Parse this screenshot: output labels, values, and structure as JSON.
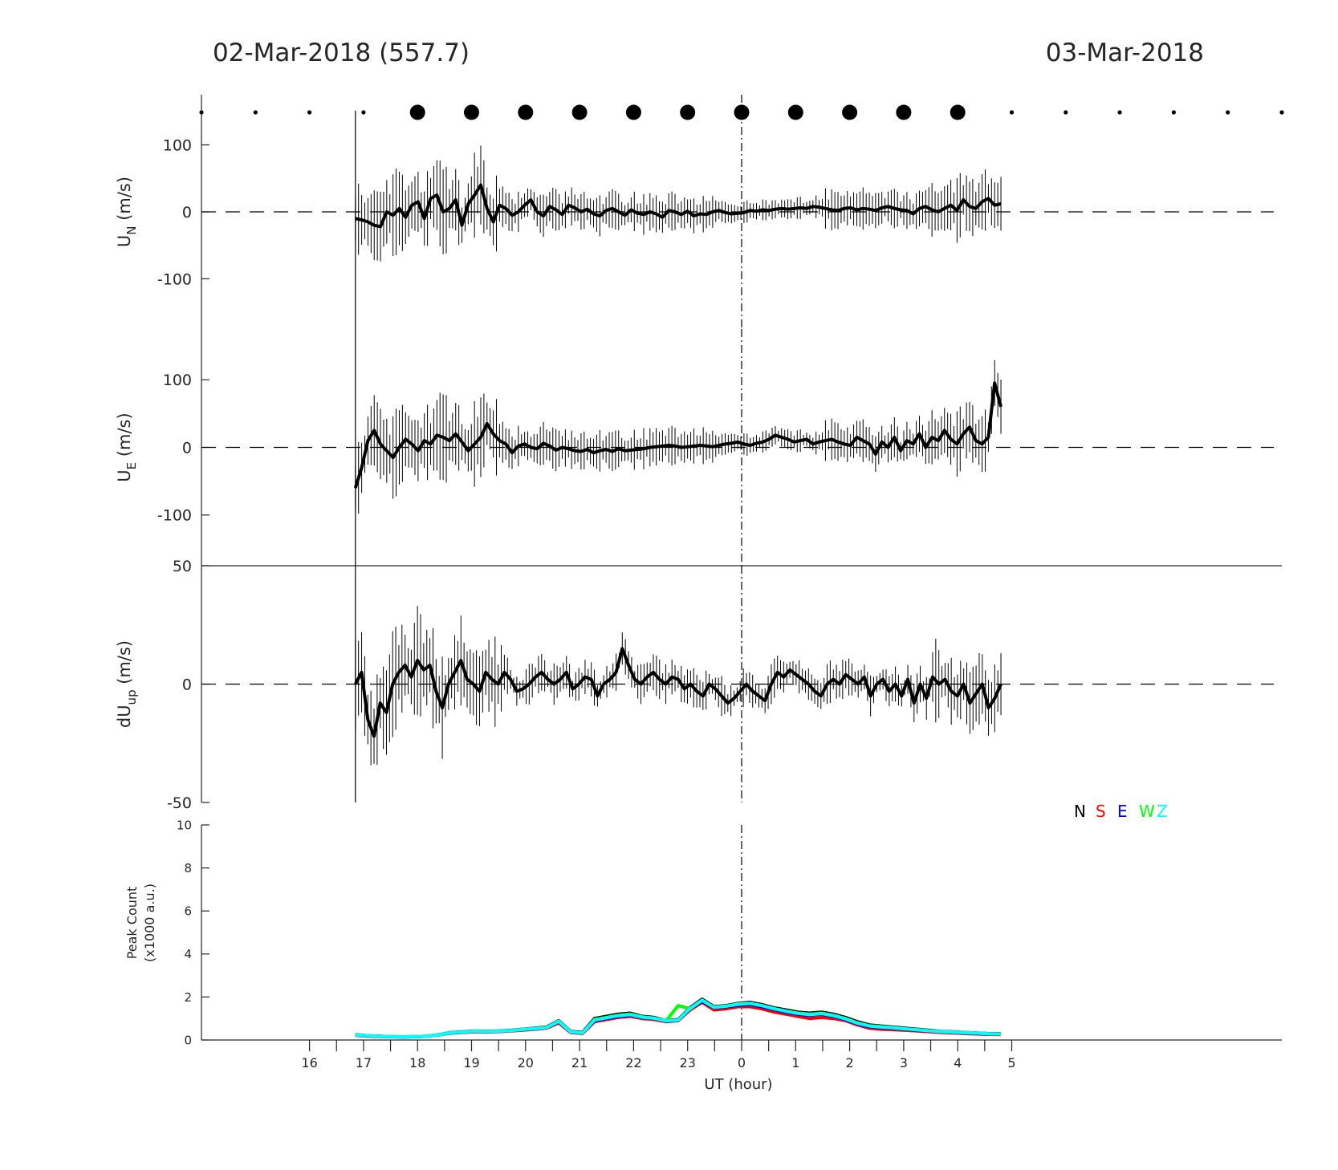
{
  "header": {
    "left_date": "02-Mar-2018 (557.7)",
    "right_date": "03-Mar-2018"
  },
  "colors": {
    "axis": "#262626",
    "data": "#000000",
    "N": "#000000",
    "S": "#ff0000",
    "E": "#0000ff",
    "W": "#00ff00",
    "Z": "#00ffff"
  },
  "x_axis": {
    "label": "UT (hour)",
    "range_hours": [
      14.0,
      34.0
    ],
    "tick_labels": [
      "16",
      "17",
      "18",
      "19",
      "20",
      "21",
      "22",
      "23",
      "0",
      "1",
      "2",
      "3",
      "4",
      "5"
    ],
    "tick_positions_hours": [
      16,
      17,
      18,
      19,
      20,
      21,
      22,
      23,
      24,
      25,
      26,
      27,
      28,
      29
    ],
    "minor_tick_step_hours": 0.5,
    "midnight_marker_hours": 24
  },
  "chart_data": [
    {
      "type": "scatter",
      "role": "sky-condition-dots",
      "x_hours": [
        14.0,
        15.0,
        16.0,
        17.0,
        18.0,
        19.0,
        20.0,
        21.0,
        22.0,
        23.0,
        24.0,
        25.0,
        26.0,
        27.0,
        28.0,
        29.0,
        30.0,
        31.0,
        32.0,
        33.0,
        34.0
      ],
      "size": [
        "small",
        "small",
        "small",
        "small",
        "large",
        "large",
        "large",
        "large",
        "large",
        "large",
        "large",
        "large",
        "large",
        "large",
        "large",
        "small",
        "small",
        "small",
        "small",
        "small",
        "small"
      ]
    },
    {
      "type": "line",
      "id": "un",
      "ylabel": "U",
      "ylabel_sub": "N",
      "ylabel_unit": " (m/s)",
      "ylim": [
        -175,
        175
      ],
      "yticks": [
        -100,
        0,
        100
      ],
      "ytick_labels": [
        "-100",
        "0",
        "100"
      ],
      "zero_line": "dashed",
      "x_start": 16.85,
      "x_end": 28.8,
      "error_bars": true,
      "values": [
        -10,
        -12,
        -15,
        -20,
        -22,
        0,
        -5,
        5,
        -8,
        10,
        15,
        -10,
        20,
        25,
        0,
        5,
        18,
        -20,
        12,
        25,
        40,
        5,
        -15,
        10,
        5,
        -5,
        0,
        10,
        18,
        0,
        -6,
        8,
        3,
        -4,
        10,
        6,
        0,
        4,
        -3,
        -6,
        2,
        5,
        0,
        -5,
        3,
        -2,
        -4,
        0,
        -3,
        -8,
        2,
        0,
        -4,
        1,
        -6,
        -3,
        -4,
        0,
        2,
        -1,
        -3,
        -2,
        -1,
        2,
        1,
        3,
        2,
        4,
        5,
        4,
        5,
        6,
        5,
        8,
        7,
        5,
        3,
        2,
        5,
        6,
        3,
        5,
        4,
        2,
        6,
        8,
        5,
        3,
        2,
        -3,
        5,
        8,
        3,
        0,
        5,
        10,
        2,
        18,
        8,
        5,
        15,
        20,
        10,
        12
      ]
    },
    {
      "type": "line",
      "id": "ue",
      "ylabel": "U",
      "ylabel_sub": "E",
      "ylabel_unit": " (m/s)",
      "ylim": [
        -175,
        175
      ],
      "yticks": [
        -100,
        0,
        100
      ],
      "ytick_labels": [
        "-100",
        "0",
        "100"
      ],
      "zero_line": "dashed",
      "x_start": 16.85,
      "x_end": 28.8,
      "error_bars": true,
      "values": [
        -60,
        -30,
        10,
        25,
        5,
        -5,
        -15,
        0,
        12,
        5,
        -5,
        10,
        5,
        18,
        15,
        10,
        20,
        8,
        -5,
        5,
        15,
        35,
        20,
        10,
        5,
        -8,
        2,
        5,
        0,
        -2,
        6,
        2,
        -4,
        0,
        -2,
        -5,
        -6,
        -3,
        -8,
        -5,
        -3,
        -6,
        -2,
        -5,
        -4,
        -3,
        -2,
        0,
        1,
        2,
        3,
        2,
        0,
        1,
        2,
        3,
        2,
        1,
        3,
        5,
        6,
        8,
        5,
        3,
        6,
        8,
        12,
        18,
        15,
        12,
        8,
        10,
        12,
        5,
        8,
        10,
        12,
        8,
        5,
        3,
        15,
        10,
        5,
        -10,
        8,
        0,
        15,
        -5,
        10,
        5,
        20,
        0,
        15,
        10,
        25,
        12,
        5,
        20,
        30,
        10,
        5,
        15,
        95,
        60
      ]
    },
    {
      "type": "line",
      "id": "dup",
      "ylabel": "dU",
      "ylabel_sub": "up",
      "ylabel_unit": " (m/s)",
      "ylim": [
        -50,
        50
      ],
      "yticks": [
        -50,
        0,
        50
      ],
      "ytick_labels": [
        "-50",
        "0",
        "50"
      ],
      "zero_line": "dashed",
      "x_start": 16.85,
      "x_end": 28.8,
      "error_bars": true,
      "values": [
        0,
        5,
        -15,
        -22,
        -8,
        -12,
        0,
        5,
        8,
        3,
        10,
        6,
        8,
        -3,
        -10,
        0,
        5,
        10,
        2,
        0,
        -3,
        5,
        2,
        0,
        5,
        2,
        -3,
        -2,
        0,
        3,
        5,
        2,
        0,
        2,
        5,
        -2,
        0,
        3,
        2,
        -5,
        0,
        2,
        5,
        15,
        8,
        2,
        0,
        3,
        5,
        2,
        0,
        3,
        2,
        -2,
        0,
        -3,
        -5,
        0,
        -2,
        -5,
        -8,
        -6,
        -3,
        0,
        -3,
        -5,
        -7,
        0,
        5,
        3,
        6,
        4,
        2,
        0,
        -3,
        -5,
        0,
        2,
        0,
        4,
        2,
        0,
        3,
        -5,
        0,
        2,
        -3,
        0,
        -5,
        2,
        -8,
        0,
        -6,
        3,
        0,
        2,
        -3,
        -5,
        0,
        -8,
        -4,
        0,
        -10,
        -6,
        0
      ]
    },
    {
      "type": "line",
      "id": "peak",
      "ylabel": "Peak Count",
      "ylabel_line2": "(x1000 a.u.)",
      "ylim": [
        0,
        10
      ],
      "yticks": [
        0,
        2,
        4,
        6,
        8,
        10
      ],
      "ytick_labels": [
        "0",
        "2",
        "4",
        "6",
        "8",
        "10"
      ],
      "x_start": 16.85,
      "x_end": 28.8,
      "legend": [
        "N",
        "S",
        "E",
        "W",
        "Z"
      ],
      "legend_placement": "top-right",
      "series": [
        {
          "name": "N",
          "color": "#000000",
          "values": [
            0.25,
            0.2,
            0.18,
            0.16,
            0.15,
            0.16,
            0.18,
            0.25,
            0.35,
            0.38,
            0.42,
            0.4,
            0.42,
            0.45,
            0.5,
            0.55,
            0.6,
            0.9,
            0.4,
            0.35,
            1.0,
            1.1,
            1.2,
            1.25,
            1.1,
            1.05,
            0.9,
            0.95,
            1.5,
            1.9,
            1.55,
            1.6,
            1.7,
            1.75,
            1.65,
            1.5,
            1.4,
            1.3,
            1.25,
            1.3,
            1.2,
            1.05,
            0.85,
            0.7,
            0.65,
            0.6,
            0.55,
            0.5,
            0.45,
            0.4,
            0.38,
            0.35,
            0.33,
            0.3,
            0.3
          ]
        },
        {
          "name": "S",
          "color": "#ff0000",
          "values": [
            0.22,
            0.18,
            0.16,
            0.15,
            0.14,
            0.15,
            0.17,
            0.23,
            0.32,
            0.35,
            0.38,
            0.37,
            0.39,
            0.42,
            0.46,
            0.5,
            0.55,
            0.8,
            0.35,
            0.3,
            0.85,
            0.95,
            1.05,
            1.1,
            1.0,
            0.95,
            0.85,
            0.9,
            1.4,
            1.75,
            1.4,
            1.45,
            1.55,
            1.55,
            1.45,
            1.3,
            1.2,
            1.1,
            1.0,
            1.05,
            1.0,
            0.9,
            0.7,
            0.55,
            0.5,
            0.48,
            0.45,
            0.42,
            0.38,
            0.35,
            0.33,
            0.3,
            0.28,
            0.26,
            0.25
          ]
        },
        {
          "name": "E",
          "color": "#0000ff",
          "values": [
            0.23,
            0.19,
            0.17,
            0.15,
            0.14,
            0.15,
            0.17,
            0.24,
            0.33,
            0.36,
            0.4,
            0.38,
            0.4,
            0.43,
            0.48,
            0.52,
            0.57,
            0.85,
            0.37,
            0.32,
            0.9,
            1.0,
            1.1,
            1.15,
            1.05,
            1.0,
            0.88,
            0.92,
            1.45,
            1.8,
            1.5,
            1.55,
            1.62,
            1.65,
            1.55,
            1.42,
            1.3,
            1.2,
            1.15,
            1.2,
            1.1,
            0.95,
            0.75,
            0.62,
            0.58,
            0.55,
            0.5,
            0.46,
            0.42,
            0.38,
            0.36,
            0.33,
            0.31,
            0.28,
            0.28
          ]
        },
        {
          "name": "W",
          "color": "#00ff00",
          "values": [
            0.24,
            0.2,
            0.17,
            0.16,
            0.15,
            0.16,
            0.18,
            0.24,
            0.34,
            0.37,
            0.41,
            0.39,
            0.41,
            0.44,
            0.49,
            0.53,
            0.58,
            0.88,
            0.38,
            0.33,
            0.95,
            1.05,
            1.15,
            1.2,
            1.08,
            1.02,
            0.9,
            1.6,
            1.45,
            1.85,
            1.52,
            1.58,
            1.68,
            1.7,
            1.6,
            1.46,
            1.35,
            1.25,
            1.2,
            1.25,
            1.15,
            1.0,
            0.8,
            0.66,
            0.62,
            0.58,
            0.52,
            0.48,
            0.43,
            0.39,
            0.37,
            0.34,
            0.32,
            0.29,
            0.29
          ]
        },
        {
          "name": "Z",
          "color": "#00ffff",
          "values": [
            0.24,
            0.2,
            0.17,
            0.16,
            0.15,
            0.16,
            0.18,
            0.24,
            0.34,
            0.37,
            0.41,
            0.39,
            0.41,
            0.44,
            0.49,
            0.53,
            0.58,
            0.87,
            0.38,
            0.33,
            0.93,
            1.03,
            1.13,
            1.18,
            1.06,
            1.01,
            0.89,
            0.93,
            1.47,
            1.85,
            1.52,
            1.57,
            1.66,
            1.7,
            1.6,
            1.46,
            1.34,
            1.24,
            1.18,
            1.23,
            1.13,
            0.98,
            0.78,
            0.65,
            0.6,
            0.57,
            0.52,
            0.47,
            0.43,
            0.39,
            0.37,
            0.34,
            0.32,
            0.29,
            0.28
          ]
        }
      ]
    }
  ]
}
